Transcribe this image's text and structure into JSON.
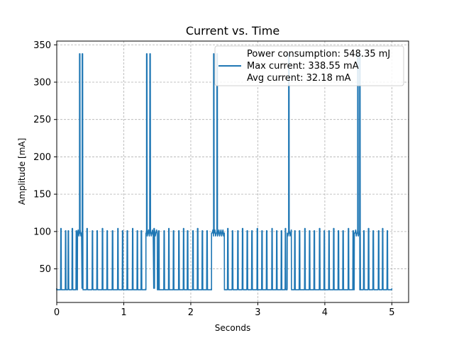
{
  "chart_data": {
    "type": "line",
    "title": "Current vs. Time",
    "xlabel": "Seconds",
    "ylabel": "Amplitude [mA]",
    "xlim": [
      0,
      5.25
    ],
    "ylim": [
      5,
      355
    ],
    "x_ticks": [
      0,
      1,
      2,
      3,
      4,
      5
    ],
    "y_ticks": [
      50,
      100,
      150,
      200,
      250,
      300,
      350
    ],
    "grid": true,
    "grid_style": "dashed",
    "legend_position": "top-right",
    "legend_lines": [
      "Power consumption: 548.35 mJ",
      "Max current: 338.55 mA",
      "Avg current: 32.18 mA"
    ],
    "series_color": "#1f77b4",
    "baseline_mA": 24,
    "pulse_level_mA": 104,
    "plateau_level_mA": 98,
    "peak_level_mA": 338,
    "pulse_times_s": [
      0.06,
      0.13,
      0.17,
      0.23,
      0.29,
      0.38,
      0.45,
      0.53,
      0.6,
      0.68,
      0.75,
      0.83,
      0.91,
      0.98,
      1.05,
      1.13,
      1.2,
      1.26,
      1.45,
      1.52,
      1.6,
      1.67,
      1.74,
      1.82,
      1.89,
      1.95,
      2.03,
      2.1,
      2.17,
      2.24,
      2.55,
      2.62,
      2.7,
      2.77,
      2.84,
      2.91,
      2.99,
      3.06,
      3.13,
      3.21,
      3.28,
      3.35,
      3.41,
      3.55,
      3.62,
      3.7,
      3.77,
      3.84,
      3.92,
      3.99,
      4.06,
      4.13,
      4.2,
      4.27,
      4.35,
      4.42,
      4.58,
      4.65,
      4.72,
      4.8,
      4.86,
      4.93
    ],
    "plateaus": [
      {
        "start": 0.31,
        "end": 0.38
      },
      {
        "start": 1.33,
        "end": 1.5
      },
      {
        "start": 2.31,
        "end": 2.5
      },
      {
        "start": 3.44,
        "end": 3.5
      },
      {
        "start": 4.44,
        "end": 4.52
      }
    ],
    "spikes_s": [
      0.34,
      0.38,
      1.34,
      1.39,
      2.34,
      2.39,
      3.46,
      4.49,
      4.52
    ],
    "x_end_s": 5.0
  }
}
